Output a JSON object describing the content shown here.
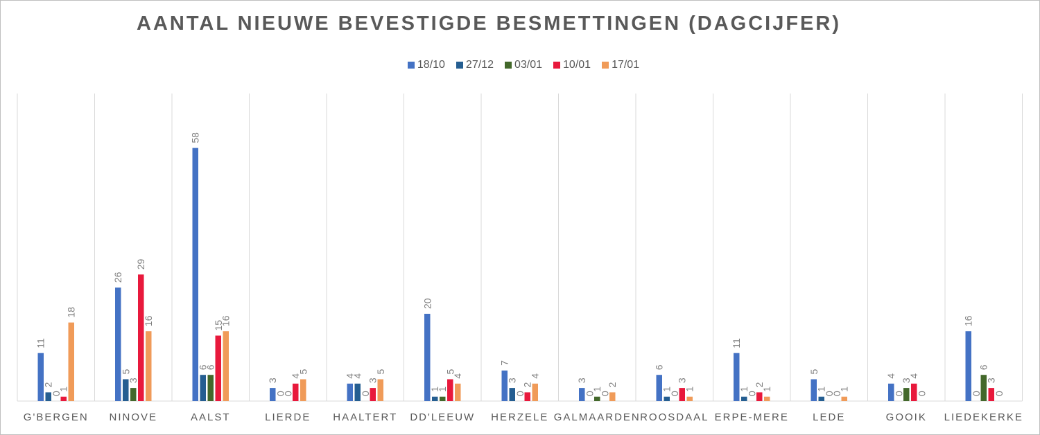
{
  "chart_data": {
    "type": "bar",
    "title": "AANTAL NIEUWE BEVESTIGDE BESMETTINGEN (DAGCIJFER)",
    "categories": [
      "G'BERGEN",
      "NINOVE",
      "AALST",
      "LIERDE",
      "HAALTERT",
      "DD'LEEUW",
      "HERZELE",
      "GALMAARDEN",
      "ROOSDAAL",
      "ERPE-MERE",
      "LEDE",
      "GOOIK",
      "LIEDEKERKE"
    ],
    "series": [
      {
        "name": "18/10",
        "color": "#4472c4",
        "values": [
          11,
          26,
          58,
          3,
          4,
          20,
          7,
          3,
          6,
          11,
          5,
          4,
          16
        ]
      },
      {
        "name": "27/12",
        "color": "#255e91",
        "values": [
          2,
          5,
          6,
          0,
          4,
          1,
          3,
          0,
          1,
          1,
          1,
          0,
          0
        ]
      },
      {
        "name": "03/01",
        "color": "#43682b",
        "values": [
          0,
          3,
          6,
          0,
          0,
          1,
          0,
          1,
          0,
          0,
          0,
          3,
          6
        ]
      },
      {
        "name": "10/01",
        "color": "#e8193c",
        "values": [
          1,
          29,
          15,
          4,
          3,
          5,
          2,
          0,
          3,
          2,
          0,
          4,
          3
        ]
      },
      {
        "name": "17/01",
        "color": "#f09b59",
        "values": [
          18,
          16,
          16,
          5,
          5,
          4,
          4,
          2,
          1,
          1,
          1,
          0,
          0
        ]
      }
    ],
    "ylim": [
      0,
      60
    ],
    "grid": "vertical separators",
    "legend": "top-center",
    "data_labels": true
  }
}
